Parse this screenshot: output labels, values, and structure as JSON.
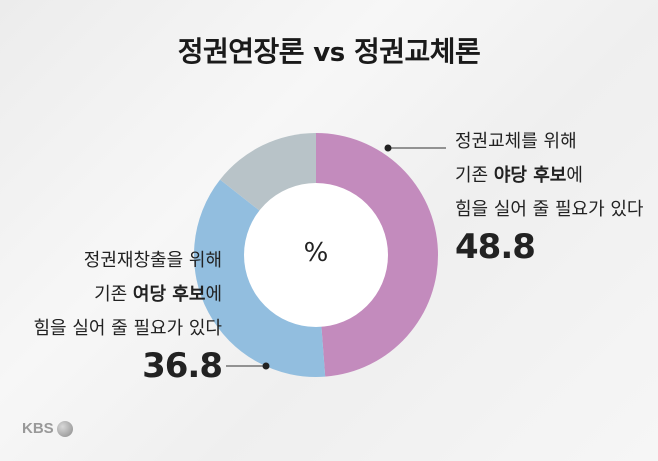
{
  "title": {
    "left": "정권연장론",
    "vs": "vs",
    "right": "정권교체론"
  },
  "center_label": "%",
  "annotations": {
    "right": {
      "line1": "정권교체를 위해",
      "line2_pre": "기존 ",
      "line2_strong": "야당 후보",
      "line2_post": "에",
      "line3": "힘을 실어 줄 필요가 있다",
      "value": "48.8"
    },
    "left": {
      "line1": "정권재창출을 위해",
      "line2_pre": "기존 ",
      "line2_strong": "여당 후보",
      "line2_post": "에",
      "line3": "힘을 실어 줄 필요가 있다",
      "value": "36.8"
    }
  },
  "logo": "KBS",
  "colors": {
    "opposition": "#c38bbd",
    "ruling": "#92bedf",
    "other": "#b8c3c8"
  },
  "chart_data": {
    "type": "pie",
    "donut": true,
    "slices": [
      {
        "name": "정권교체를 위해 기존 야당 후보에 힘을 실어 줄 필요가 있다",
        "value": 48.8,
        "color": "#c38bbd"
      },
      {
        "name": "정권재창출을 위해 기존 여당 후보에 힘을 실어 줄 필요가 있다",
        "value": 36.8,
        "color": "#92bedf"
      },
      {
        "value": 14.4,
        "color": "#b8c3c8"
      }
    ],
    "start": "top",
    "direction": "clockwise",
    "title": "정권연장론 vs 정권교체론"
  }
}
